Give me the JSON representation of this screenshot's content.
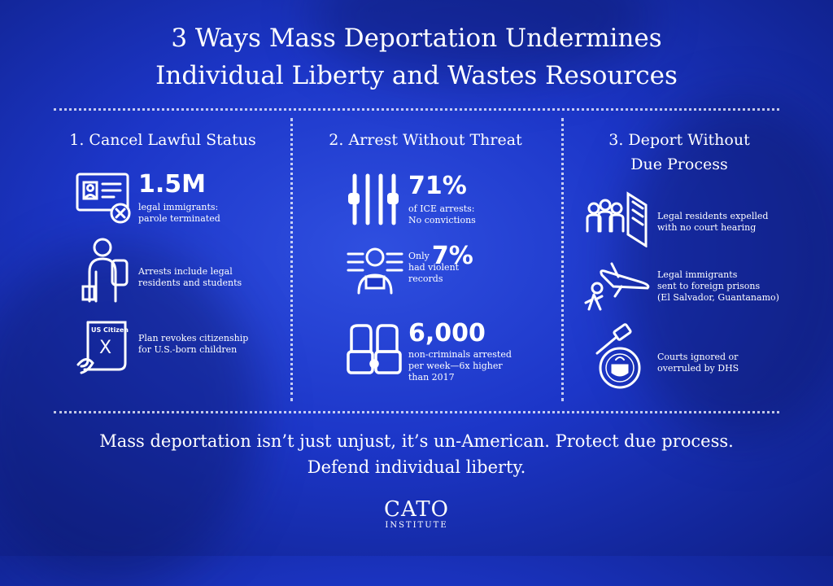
{
  "title": {
    "line1": "3 Ways Mass Deportation Undermines",
    "line2": "Individual Liberty and Wastes Resources"
  },
  "columns": [
    {
      "heading": "1. Cancel Lawful Status",
      "items": [
        {
          "icon": "id-card-x-icon",
          "stat": "1.5M",
          "text": [
            "legal immigrants:",
            "parole terminated"
          ]
        },
        {
          "icon": "student-backpack-icon",
          "text": [
            "Arrests include legal",
            "residents and students"
          ]
        },
        {
          "icon": "us-citizen-document-icon",
          "icon_text": "US Citizen",
          "icon_mark": "X",
          "text": [
            "Plan revokes citizenship",
            "for U.S.-born children"
          ]
        }
      ]
    },
    {
      "heading": "2. Arrest Without Threat",
      "items": [
        {
          "icon": "jail-bars-icon",
          "stat": "71%",
          "text": [
            "of ICE arrests:",
            "No convictions"
          ]
        },
        {
          "icon": "mugshot-icon",
          "prefix": "Only",
          "stat": "7%",
          "text": [
            "had violent",
            "records"
          ]
        },
        {
          "icon": "handcuffs-icon",
          "stat": "6,000",
          "text": [
            "non-criminals arrested",
            "per week—6x higher",
            "than 2017"
          ]
        }
      ]
    },
    {
      "heading_lines": [
        "3. Deport Without",
        "Due Process"
      ],
      "items": [
        {
          "icon": "group-door-icon",
          "text": [
            "Legal residents expelled",
            "with no court hearing"
          ]
        },
        {
          "icon": "airplane-person-icon",
          "text": [
            "Legal immigrants",
            "sent to foreign prisons",
            "(El Salvador, Guantanamo)"
          ]
        },
        {
          "icon": "gavel-dhs-seal-icon",
          "text": [
            "Courts ignored or",
            "overruled by DHS"
          ]
        }
      ]
    }
  ],
  "footer": {
    "line1": "Mass deportation isn’t just unjust, it’s un-American. Protect due process.",
    "line2": "Defend individual liberty."
  },
  "logo": {
    "main": "CATO",
    "sub": "INSTITUTE"
  },
  "colors": {
    "background": "#1c36c8",
    "text": "#ffffff"
  }
}
